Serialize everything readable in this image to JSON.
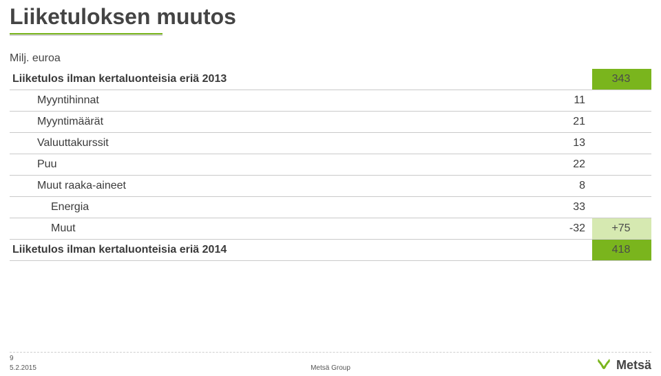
{
  "title": "Liiketuloksen muutos",
  "unit_label": "Milj. euroa",
  "rows": [
    {
      "label": "Liiketulos ilman kertaluonteisia eriä 2013",
      "value": "",
      "note": "343",
      "note_style": "green",
      "bold": true,
      "indent": 0
    },
    {
      "label": "Myyntihinnat",
      "value": "11",
      "note": "",
      "indent": 1
    },
    {
      "label": "Myyntimäärät",
      "value": "21",
      "note": "",
      "indent": 1
    },
    {
      "label": "Valuuttakurssit",
      "value": "13",
      "note": "",
      "indent": 1
    },
    {
      "label": "Puu",
      "value": "22",
      "note": "",
      "indent": 1
    },
    {
      "label": "Muut raaka-aineet",
      "value": "8",
      "note": "",
      "indent": 1
    },
    {
      "label": "Energia",
      "value": "33",
      "note": "",
      "indent": 2
    },
    {
      "label": "Muut",
      "value": "-32",
      "note": "+75",
      "note_style": "light",
      "indent": 2
    },
    {
      "label": "Liiketulos ilman kertaluonteisia eriä 2014",
      "value": "",
      "note": "418",
      "note_style": "green",
      "bold": true,
      "indent": 0
    }
  ],
  "footer": {
    "page_number": "9",
    "date": "5.2.2015",
    "center": "Metsä Group",
    "logo_text": "Metsä"
  },
  "colors": {
    "accent_green": "#7ab51d",
    "light_green": "#d6e9b1",
    "rule_grey": "#cfcfcf",
    "text": "#444444"
  }
}
